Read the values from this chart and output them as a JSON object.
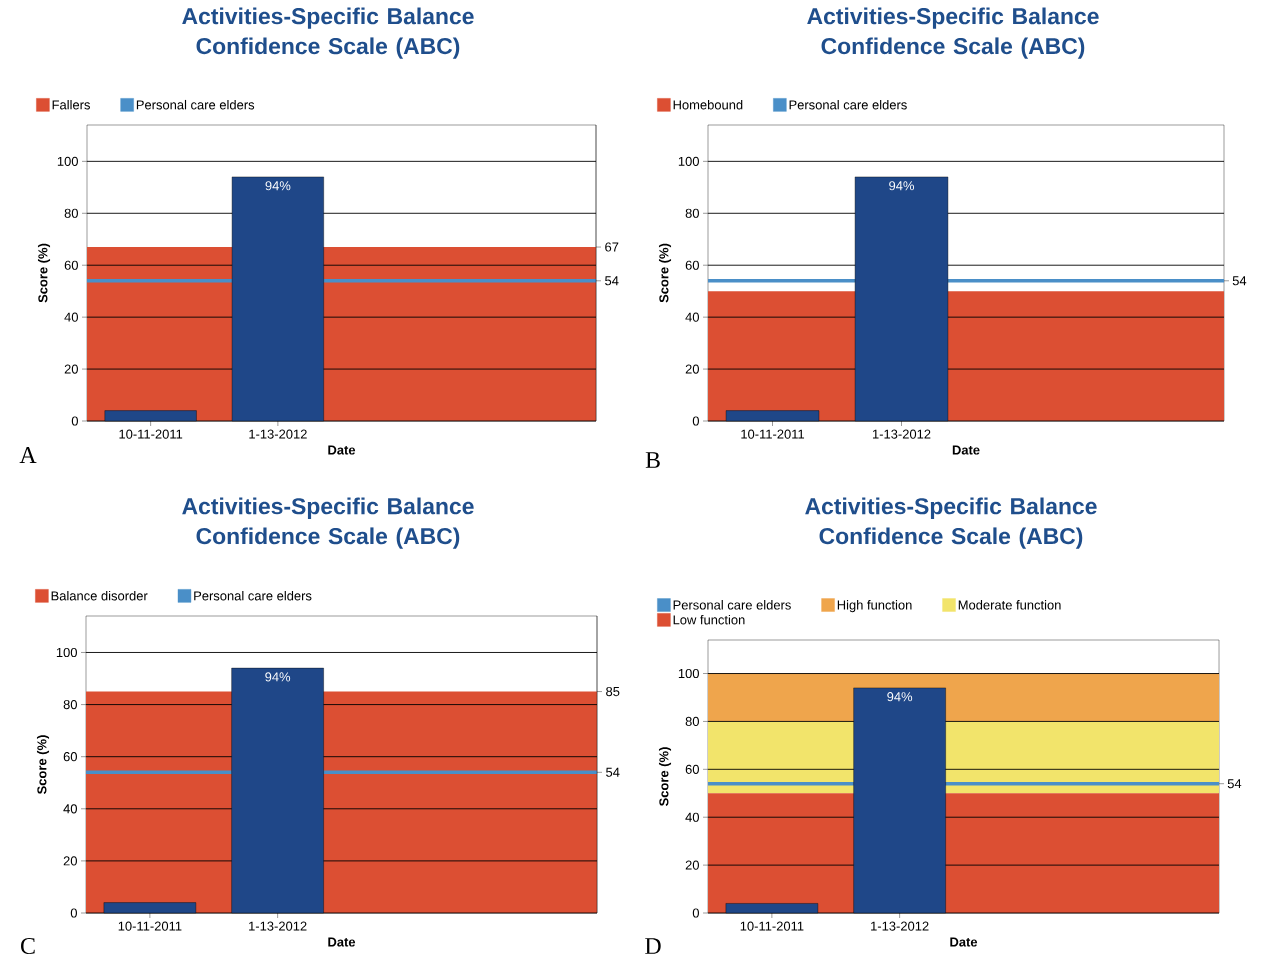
{
  "chart_data": [
    {
      "type": "bar",
      "title": "Activities-Specific Balance Confidence Scale (ABC)",
      "xlabel": "Date",
      "ylabel": "Score (%)",
      "categories": [
        "10-11-2011",
        "1-13-2012",
        null,
        null
      ],
      "values": [
        4,
        94,
        null,
        null
      ],
      "color": "#1f4788",
      "value_labels": [
        null,
        "94%",
        null,
        null
      ],
      "ylim": [
        0,
        114
      ],
      "yticks": [
        0,
        20,
        40,
        60,
        80,
        100
      ],
      "y2lim": [
        0,
        114
      ],
      "y2ticks": [
        67,
        54
      ],
      "grid": "y",
      "legend": "top left",
      "bands": [
        {
          "axis": "y",
          "from": 0,
          "to": 67,
          "label": "Fallers",
          "color": "#dc4f33"
        }
      ],
      "ref_lines": [
        {
          "axis": "y",
          "value": 54,
          "label": "Personal care elders",
          "color": "#4a8fc8"
        }
      ],
      "annotations": [
        "A"
      ]
    },
    {
      "type": "bar",
      "title": "Activities-Specific Balance Confidence Scale (ABC)",
      "xlabel": "Date",
      "ylabel": "Score (%)",
      "categories": [
        "10-11-2011",
        "1-13-2012",
        null,
        null
      ],
      "values": [
        4,
        94,
        null,
        null
      ],
      "color": "#1f4788",
      "value_labels": [
        null,
        "94%",
        null,
        null
      ],
      "ylim": [
        0,
        114
      ],
      "yticks": [
        0,
        20,
        40,
        60,
        80,
        100
      ],
      "grid": "y",
      "legend": "top left",
      "bands": [
        {
          "axis": "y",
          "from": 0,
          "to": 50,
          "label": "Homebound",
          "color": "#dc4f33"
        }
      ],
      "ref_lines": [
        {
          "axis": "y",
          "value": 54,
          "label": "Personal care elders",
          "color": "#4a8fc8"
        }
      ],
      "annotations": [
        "B",
        "54"
      ]
    },
    {
      "type": "bar",
      "title": "Activities-Specific Balance Confidence Scale (ABC)",
      "xlabel": "Date",
      "ylabel": "Score (%)",
      "categories": [
        "10-11-2011",
        "1-13-2012",
        null,
        null
      ],
      "values": [
        4,
        94,
        null,
        null
      ],
      "color": "#1f4788",
      "value_labels": [
        null,
        "94%",
        null,
        null
      ],
      "ylim": [
        0,
        114
      ],
      "yticks": [
        0,
        20,
        40,
        60,
        80,
        100
      ],
      "y2lim": [
        0,
        114
      ],
      "y2ticks": [
        85,
        54
      ],
      "grid": "y",
      "legend": "top left",
      "bands": [
        {
          "axis": "y",
          "from": 0,
          "to": 85,
          "label": "Balance disorder",
          "color": "#dc4f33"
        }
      ],
      "ref_lines": [
        {
          "axis": "y",
          "value": 54,
          "label": "Personal care elders",
          "color": "#4a8fc8"
        }
      ],
      "annotations": [
        "C"
      ]
    },
    {
      "type": "bar",
      "title": "Activities-Specific Balance Confidence Scale (ABC)",
      "xlabel": "Date",
      "ylabel": "Score (%)",
      "categories": [
        "10-11-2011",
        "1-13-2012",
        null,
        null
      ],
      "values": [
        4,
        94,
        null,
        null
      ],
      "color": "#1f4788",
      "value_labels": [
        null,
        "94%",
        null,
        null
      ],
      "ylim": [
        0,
        114
      ],
      "yticks": [
        0,
        20,
        40,
        60,
        80,
        100
      ],
      "grid": "y",
      "legend": "top left",
      "bands": [
        {
          "axis": "y",
          "from": 80,
          "to": 100,
          "label": "High function",
          "color": "#efa54c"
        },
        {
          "axis": "y",
          "from": 50,
          "to": 80,
          "label": "Moderate function",
          "color": "#f2e46b"
        },
        {
          "axis": "y",
          "from": 0,
          "to": 50,
          "label": "Low function",
          "color": "#dc4f33"
        }
      ],
      "ref_lines": [
        {
          "axis": "y",
          "value": 54,
          "label": "Personal care elders",
          "color": "#4a8fc8"
        }
      ],
      "annotations": [
        "D",
        "54"
      ]
    }
  ]
}
